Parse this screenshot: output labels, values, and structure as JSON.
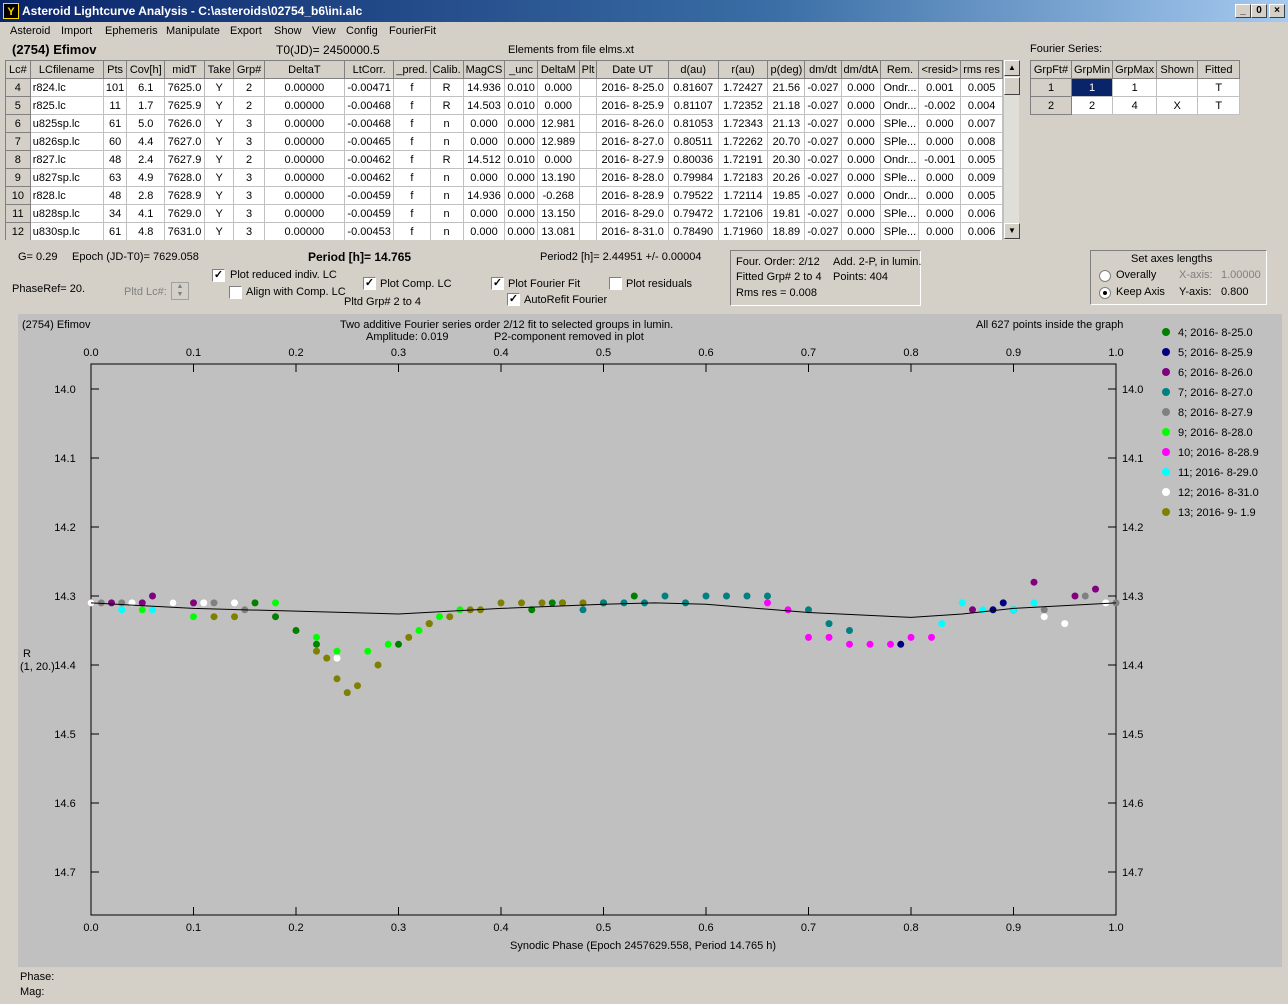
{
  "window": {
    "title": "Asteroid Lightcurve Analysis - C:\\asteroids\\02754_b6\\ini.alc",
    "icon_label": "Y",
    "min_label": "_",
    "restore_label": "0",
    "close_label": "×"
  },
  "menu": [
    "Asteroid",
    "Import",
    "Ephemeris",
    "Manipulate",
    "Export",
    "Show",
    "View",
    "Config",
    "FourierFit"
  ],
  "header": {
    "object": "(2754) Efimov",
    "t0": "T0(JD)= 2450000.5",
    "elements": "Elements from file elms.xt"
  },
  "table": {
    "columns": [
      "Lc#",
      "LCfilename",
      "Pts",
      "Cov[h]",
      "midT",
      "Take",
      "Grp#",
      "DeltaT",
      "LtCorr.",
      "_pred.",
      "Calib.",
      "MagCS",
      "_unc",
      "DeltaM",
      "Plt",
      "Date UT",
      "d(au)",
      "r(au)",
      "p(deg)",
      "dm/dt",
      "dm/dtA",
      "Rem.",
      "<resid>",
      "rms res"
    ],
    "rows": [
      [
        "4",
        "r824.lc",
        "101",
        "6.1",
        "7625.0",
        "Y",
        "2",
        "0.00000",
        "-0.00471",
        "f",
        "R",
        "14.936",
        "0.010",
        "0.000",
        "",
        "2016- 8-25.0",
        "0.81607",
        "1.72427",
        "21.56",
        "-0.027",
        "0.000",
        "Ondr...",
        "0.001",
        "0.005"
      ],
      [
        "5",
        "r825.lc",
        "11",
        "1.7",
        "7625.9",
        "Y",
        "2",
        "0.00000",
        "-0.00468",
        "f",
        "R",
        "14.503",
        "0.010",
        "0.000",
        "",
        "2016- 8-25.9",
        "0.81107",
        "1.72352",
        "21.18",
        "-0.027",
        "0.000",
        "Ondr...",
        "-0.002",
        "0.004"
      ],
      [
        "6",
        "u825sp.lc",
        "61",
        "5.0",
        "7626.0",
        "Y",
        "3",
        "0.00000",
        "-0.00468",
        "f",
        "n",
        "0.000",
        "0.000",
        "12.981",
        "",
        "2016- 8-26.0",
        "0.81053",
        "1.72343",
        "21.13",
        "-0.027",
        "0.000",
        "SPle...",
        "0.000",
        "0.007"
      ],
      [
        "7",
        "u826sp.lc",
        "60",
        "4.4",
        "7627.0",
        "Y",
        "3",
        "0.00000",
        "-0.00465",
        "f",
        "n",
        "0.000",
        "0.000",
        "12.989",
        "",
        "2016- 8-27.0",
        "0.80511",
        "1.72262",
        "20.70",
        "-0.027",
        "0.000",
        "SPle...",
        "0.000",
        "0.008"
      ],
      [
        "8",
        "r827.lc",
        "48",
        "2.4",
        "7627.9",
        "Y",
        "2",
        "0.00000",
        "-0.00462",
        "f",
        "R",
        "14.512",
        "0.010",
        "0.000",
        "",
        "2016- 8-27.9",
        "0.80036",
        "1.72191",
        "20.30",
        "-0.027",
        "0.000",
        "Ondr...",
        "-0.001",
        "0.005"
      ],
      [
        "9",
        "u827sp.lc",
        "63",
        "4.9",
        "7628.0",
        "Y",
        "3",
        "0.00000",
        "-0.00462",
        "f",
        "n",
        "0.000",
        "0.000",
        "13.190",
        "",
        "2016- 8-28.0",
        "0.79984",
        "1.72183",
        "20.26",
        "-0.027",
        "0.000",
        "SPle...",
        "0.000",
        "0.009"
      ],
      [
        "10",
        "r828.lc",
        "48",
        "2.8",
        "7628.9",
        "Y",
        "3",
        "0.00000",
        "-0.00459",
        "f",
        "n",
        "14.936",
        "0.000",
        "-0.268",
        "",
        "2016- 8-28.9",
        "0.79522",
        "1.72114",
        "19.85",
        "-0.027",
        "0.000",
        "Ondr...",
        "0.000",
        "0.005"
      ],
      [
        "11",
        "u828sp.lc",
        "34",
        "4.1",
        "7629.0",
        "Y",
        "3",
        "0.00000",
        "-0.00459",
        "f",
        "n",
        "0.000",
        "0.000",
        "13.150",
        "",
        "2016- 8-29.0",
        "0.79472",
        "1.72106",
        "19.81",
        "-0.027",
        "0.000",
        "SPle...",
        "0.000",
        "0.006"
      ],
      [
        "12",
        "u830sp.lc",
        "61",
        "4.8",
        "7631.0",
        "Y",
        "3",
        "0.00000",
        "-0.00453",
        "f",
        "n",
        "0.000",
        "0.000",
        "13.081",
        "",
        "2016- 8-31.0",
        "0.78490",
        "1.71960",
        "18.89",
        "-0.027",
        "0.000",
        "SPle...",
        "0.000",
        "0.006"
      ]
    ]
  },
  "fourier": {
    "title": "Fourier Series:",
    "columns": [
      "GrpFt#",
      "GrpMin",
      "GrpMax",
      "Shown",
      "Fitted"
    ],
    "rows": [
      [
        "1",
        "1",
        "1",
        "",
        "T"
      ],
      [
        "2",
        "2",
        "4",
        "X",
        "T"
      ]
    ]
  },
  "controls": {
    "g": "G= 0.29",
    "epoch": "Epoch (JD-T0)= 7629.058",
    "phaseref": "PhaseRef= 20.",
    "pltdlc": "Pltd Lc#:",
    "period": "Period [h]= 14.765",
    "period2": "Period2 [h]= 2.44951 +/- 0.00004",
    "plot_reduced": "Plot reduced indiv. LC",
    "align": "Align with Comp. LC",
    "plot_comp": "Plot Comp. LC",
    "pltd_grp": "Pltd Grp#  2   to   4",
    "plot_fourier": "Plot Fourier Fit",
    "autorefit": "AutoRefit Fourier",
    "plot_resid": "Plot residuals",
    "info1": "Four. Order:  2/12",
    "info2": "Add. 2-P, in lumin.",
    "info3": "Fitted Grp# 2 to 4",
    "info4": "Points: 404",
    "info5": "Rms res     = 0.008",
    "axes_title": "Set axes lengths",
    "overall": "Overally",
    "xaxis": "X-axis:",
    "xaxis_val": "1.00000",
    "keepaxis": "Keep Axis",
    "yaxis": "Y-axis:",
    "yaxis_val": "0.800"
  },
  "plot": {
    "corner": "(2754) Efimov",
    "line1": "Two additive Fourier series order 2/12 fit to selected groups in lumin.",
    "line2": "Amplitude: 0.019",
    "line3": "P2-component removed in plot",
    "inside": "All 627 points inside the graph",
    "ylabel1": "R",
    "ylabel2": "(1, 20.)",
    "xlabel": "Synodic Phase (Epoch 2457629.558, Period 14.765 h)",
    "xticks": [
      "0.0",
      "0.1",
      "0.2",
      "0.3",
      "0.4",
      "0.5",
      "0.6",
      "0.7",
      "0.8",
      "0.9",
      "1.0"
    ],
    "yticks": [
      "14.0",
      "14.1",
      "14.2",
      "14.3",
      "14.4",
      "14.5",
      "14.6",
      "14.7"
    ]
  },
  "chart_data": {
    "type": "scatter",
    "xlim": [
      0,
      1
    ],
    "ylim": [
      14.7,
      14.0
    ],
    "legend": [
      {
        "label": "4; 2016- 8-25.0",
        "color": "#008000"
      },
      {
        "label": "5; 2016- 8-25.9",
        "color": "#000080"
      },
      {
        "label": "6; 2016- 8-26.0",
        "color": "#800080"
      },
      {
        "label": "7; 2016- 8-27.0",
        "color": "#008080"
      },
      {
        "label": "8; 2016- 8-27.9",
        "color": "#808080"
      },
      {
        "label": "9; 2016- 8-28.0",
        "color": "#00ff00"
      },
      {
        "label": "10; 2016- 8-28.9",
        "color": "#ff00ff"
      },
      {
        "label": "11; 2016- 8-29.0",
        "color": "#00ffff"
      },
      {
        "label": "12; 2016- 8-31.0",
        "color": "#ffffff"
      },
      {
        "label": "13; 2016- 9- 1.9",
        "color": "#808000"
      }
    ],
    "fit": [
      [
        0,
        14.31
      ],
      [
        0.1,
        14.318
      ],
      [
        0.2,
        14.322
      ],
      [
        0.3,
        14.326
      ],
      [
        0.4,
        14.318
      ],
      [
        0.5,
        14.312
      ],
      [
        0.55,
        14.31
      ],
      [
        0.6,
        14.312
      ],
      [
        0.7,
        14.324
      ],
      [
        0.8,
        14.331
      ],
      [
        0.85,
        14.326
      ],
      [
        0.9,
        14.318
      ],
      [
        1.0,
        14.31
      ]
    ],
    "series": [
      {
        "name": "4",
        "color": "#008000",
        "x": [
          0.16,
          0.18,
          0.2,
          0.22,
          0.3,
          0.33,
          0.43,
          0.45,
          0.5,
          0.53
        ],
        "y": [
          14.31,
          14.33,
          14.35,
          14.37,
          14.37,
          14.34,
          14.32,
          14.31,
          14.31,
          14.3
        ]
      },
      {
        "name": "5",
        "color": "#000080",
        "x": [
          0.88,
          0.89,
          0.9,
          0.79
        ],
        "y": [
          14.32,
          14.31,
          14.32,
          14.37
        ]
      },
      {
        "name": "6",
        "color": "#800080",
        "x": [
          0.0,
          0.02,
          0.05,
          0.06,
          0.08,
          0.1,
          0.86,
          0.92,
          0.96,
          0.98
        ],
        "y": [
          14.31,
          14.31,
          14.31,
          14.3,
          14.31,
          14.31,
          14.32,
          14.28,
          14.3,
          14.29
        ]
      },
      {
        "name": "7",
        "color": "#008080",
        "x": [
          0.46,
          0.48,
          0.5,
          0.52,
          0.54,
          0.56,
          0.58,
          0.6,
          0.62,
          0.64,
          0.66,
          0.7,
          0.72,
          0.74
        ],
        "y": [
          14.31,
          14.32,
          14.31,
          14.31,
          14.31,
          14.3,
          14.31,
          14.3,
          14.3,
          14.3,
          14.3,
          14.32,
          14.34,
          14.35
        ]
      },
      {
        "name": "8",
        "color": "#808080",
        "x": [
          0.01,
          0.03,
          0.12,
          0.15,
          0.93,
          0.97,
          1.0
        ],
        "y": [
          14.31,
          14.31,
          14.31,
          14.32,
          14.32,
          14.3,
          14.31
        ]
      },
      {
        "name": "9",
        "color": "#00ff00",
        "x": [
          0.05,
          0.1,
          0.18,
          0.22,
          0.24,
          0.27,
          0.29,
          0.32,
          0.34,
          0.36
        ],
        "y": [
          14.32,
          14.33,
          14.31,
          14.36,
          14.38,
          14.38,
          14.37,
          14.35,
          14.33,
          14.32
        ]
      },
      {
        "name": "10",
        "color": "#ff00ff",
        "x": [
          0.66,
          0.68,
          0.7,
          0.72,
          0.74,
          0.76,
          0.78,
          0.8,
          0.82
        ],
        "y": [
          14.31,
          14.32,
          14.36,
          14.36,
          14.37,
          14.37,
          14.37,
          14.36,
          14.36
        ]
      },
      {
        "name": "11",
        "color": "#00ffff",
        "x": [
          0.03,
          0.06,
          0.83,
          0.85,
          0.87,
          0.9,
          0.92
        ],
        "y": [
          14.32,
          14.32,
          14.34,
          14.31,
          14.32,
          14.32,
          14.31
        ]
      },
      {
        "name": "12",
        "color": "#ffffff",
        "x": [
          0.0,
          0.04,
          0.08,
          0.11,
          0.14,
          0.24,
          0.93,
          0.95,
          0.99
        ],
        "y": [
          14.31,
          14.31,
          14.31,
          14.31,
          14.31,
          14.39,
          14.33,
          14.34,
          14.31
        ]
      },
      {
        "name": "13",
        "color": "#808000",
        "x": [
          0.12,
          0.14,
          0.22,
          0.23,
          0.24,
          0.25,
          0.26,
          0.28,
          0.31,
          0.33,
          0.35,
          0.37,
          0.38,
          0.4,
          0.42,
          0.44,
          0.46,
          0.48
        ],
        "y": [
          14.33,
          14.33,
          14.38,
          14.39,
          14.42,
          14.44,
          14.43,
          14.4,
          14.36,
          14.34,
          14.33,
          14.32,
          14.32,
          14.31,
          14.31,
          14.31,
          14.31,
          14.31
        ]
      }
    ]
  }
}
